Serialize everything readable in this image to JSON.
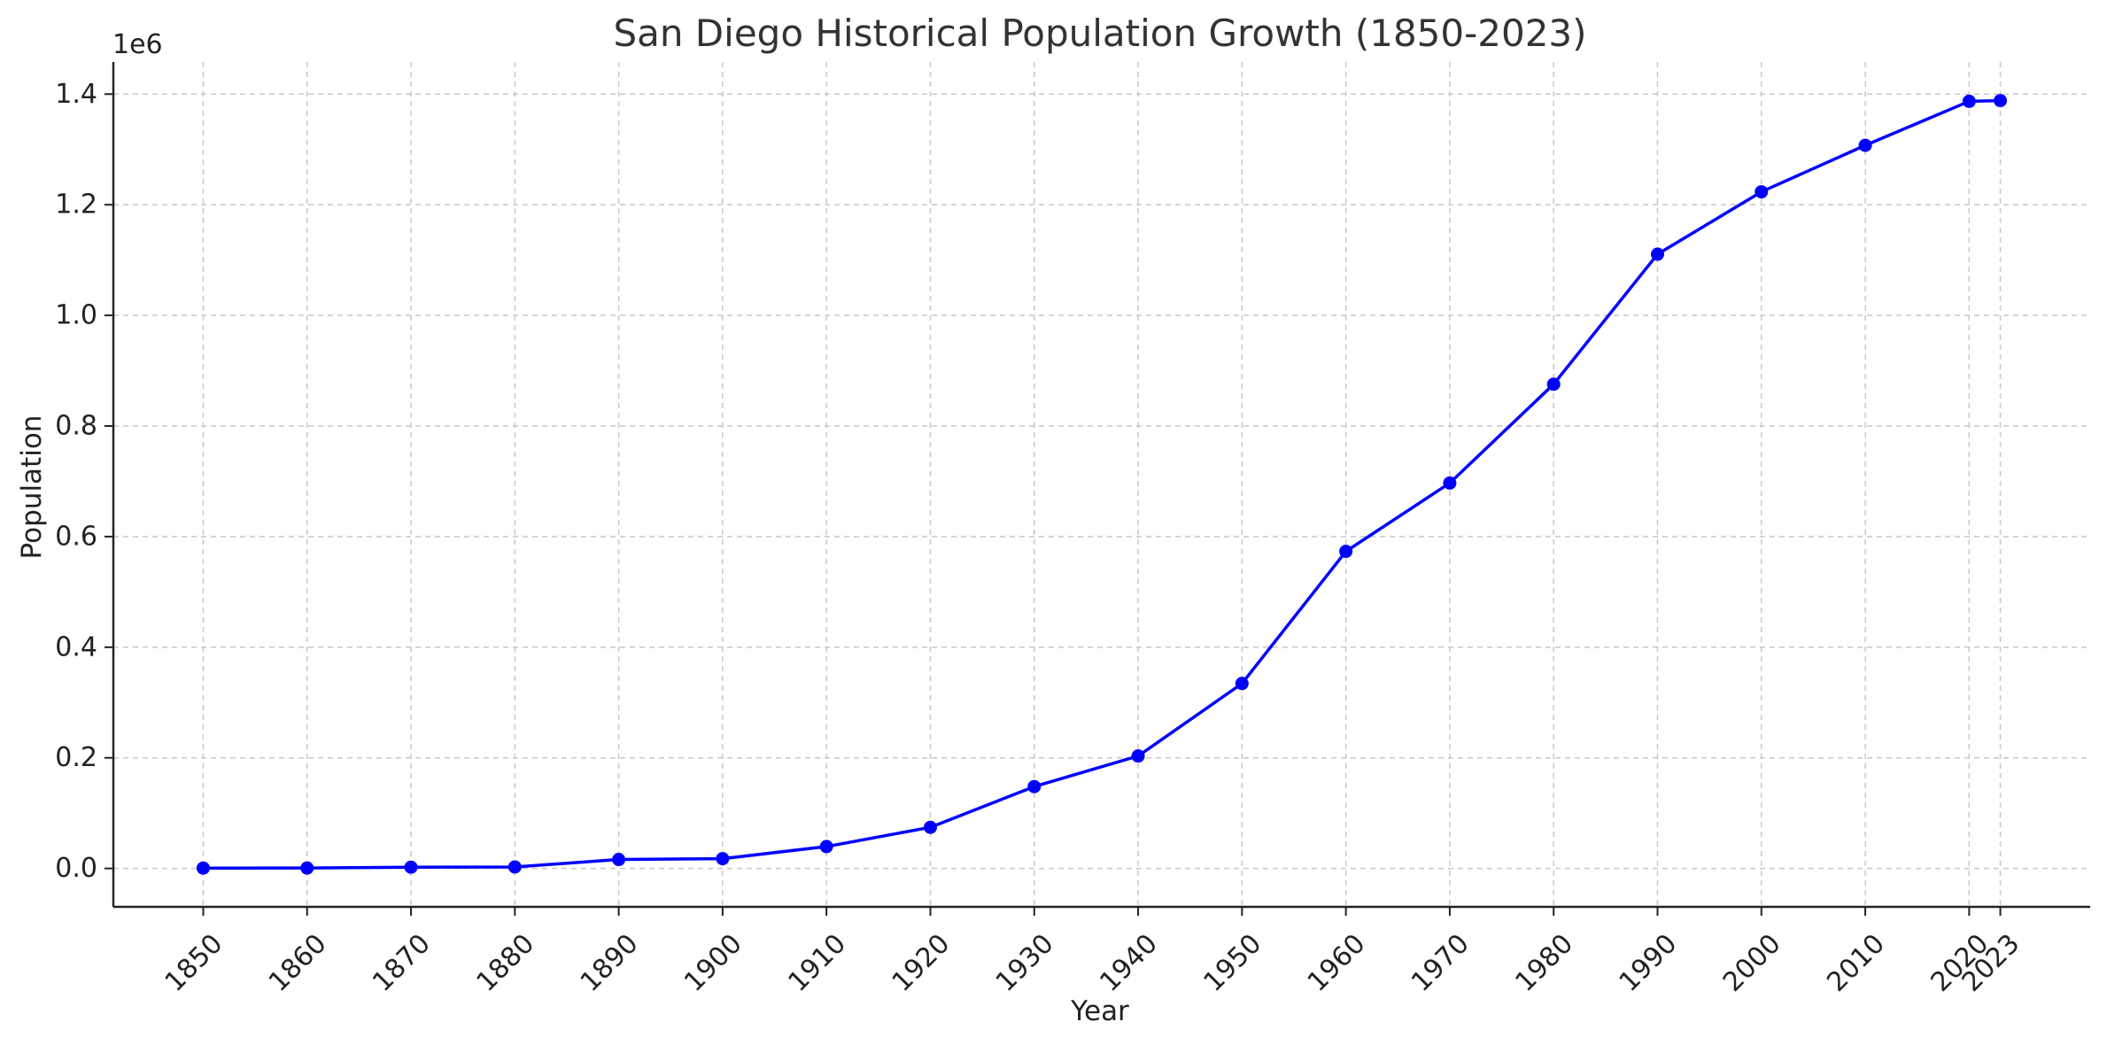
{
  "chart_data": {
    "type": "line",
    "title": "San Diego Historical Population Growth (1850-2023)",
    "xlabel": "Year",
    "ylabel": "Population",
    "y_offset_label": "1e6",
    "xlim": [
      1841.35,
      2031.65
    ],
    "ylim": [
      -69432,
      1458072
    ],
    "grid": true,
    "legend": "none",
    "line_color": "#0000ff",
    "x_ticks": [
      1850,
      1860,
      1870,
      1880,
      1890,
      1900,
      1910,
      1920,
      1930,
      1940,
      1950,
      1960,
      1970,
      1980,
      1990,
      2000,
      2010,
      2020,
      2023
    ],
    "y_ticks": [
      0,
      200000,
      400000,
      600000,
      800000,
      1000000,
      1200000,
      1400000
    ],
    "y_tick_labels": [
      "0.0",
      "0.2",
      "0.4",
      "0.6",
      "0.8",
      "1.0",
      "1.2",
      "1.4"
    ],
    "series": [
      {
        "x": [
          1850,
          1860,
          1870,
          1880,
          1890,
          1900,
          1910,
          1920,
          1930,
          1940,
          1950,
          1960,
          1970,
          1980,
          1990,
          2000,
          2010,
          2020,
          2023
        ],
        "y": [
          650,
          731,
          2300,
          2637,
          16159,
          17700,
          39578,
          74361,
          147995,
          203341,
          334387,
          573224,
          696769,
          875538,
          1110549,
          1223400,
          1307402,
          1386932,
          1388320
        ]
      }
    ]
  }
}
